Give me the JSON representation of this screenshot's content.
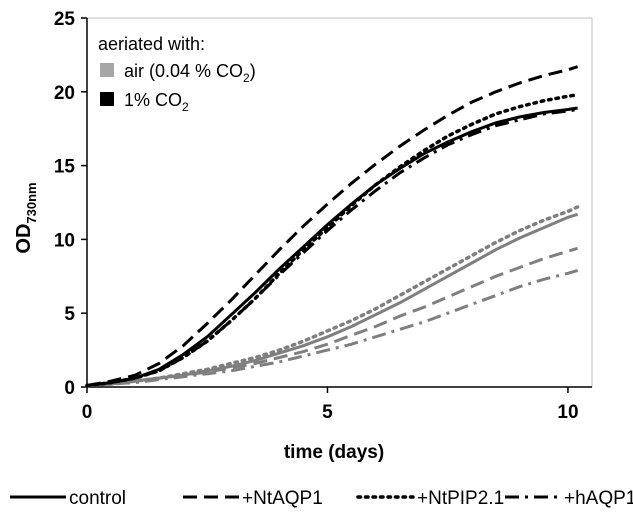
{
  "chart_data": {
    "type": "line",
    "xlabel": "time (days)",
    "ylabel": {
      "main": "OD",
      "sub": "730nm"
    },
    "xlim": [
      0,
      10.5
    ],
    "ylim": [
      0,
      25
    ],
    "xticks": [
      0,
      5,
      10
    ],
    "yticks": [
      0,
      5,
      10,
      15,
      20,
      25
    ],
    "grid": false,
    "box_legend": {
      "title": "aeriated with:",
      "placement": "top-left",
      "entries": [
        {
          "label": "air (0.04 % CO",
          "sub": "2",
          "suffix": ")",
          "color": "#a6a6a6"
        },
        {
          "label": "1% CO",
          "sub": "2",
          "suffix": "",
          "color": "#000000"
        }
      ]
    },
    "line_legend": {
      "placement": "bottom",
      "entries": [
        {
          "label": "control",
          "dash": "solid"
        },
        {
          "label": "+NtAQP1",
          "dash": "dashed"
        },
        {
          "label": "+NtPIP2.1",
          "dash": "dotted"
        },
        {
          "label": "+hAQP1",
          "dash": "dashdot"
        }
      ]
    },
    "colors": {
      "co2": "#000000",
      "air": "#7f7f7f",
      "air_legend": "#a6a6a6"
    },
    "x": [
      0,
      0.5,
      1,
      1.5,
      2,
      2.5,
      3,
      3.5,
      4,
      4.5,
      5,
      5.5,
      6,
      6.5,
      7,
      7.5,
      8,
      8.5,
      9,
      9.5,
      10,
      10.2
    ],
    "series": [
      {
        "name": "control",
        "group": "1% CO2",
        "dash": "solid",
        "values": [
          0.1,
          0.3,
          0.6,
          1.2,
          2.2,
          3.4,
          4.9,
          6.4,
          8.0,
          9.5,
          11.0,
          12.4,
          13.7,
          14.8,
          15.8,
          16.6,
          17.3,
          17.9,
          18.3,
          18.6,
          18.8,
          18.9
        ]
      },
      {
        "name": "+NtAQP1",
        "group": "1% CO2",
        "dash": "dashed",
        "values": [
          0.1,
          0.4,
          0.8,
          1.6,
          2.8,
          4.3,
          5.9,
          7.6,
          9.3,
          10.9,
          12.4,
          13.8,
          15.1,
          16.3,
          17.4,
          18.4,
          19.3,
          20.0,
          20.6,
          21.1,
          21.5,
          21.7
        ]
      },
      {
        "name": "+NtPIP2.1",
        "group": "1% CO2",
        "dash": "dotted",
        "values": [
          0.1,
          0.3,
          0.6,
          1.1,
          2.0,
          3.1,
          4.5,
          6.0,
          7.7,
          9.3,
          10.8,
          12.3,
          13.7,
          14.9,
          16.0,
          17.0,
          17.8,
          18.5,
          19.0,
          19.4,
          19.7,
          19.8
        ]
      },
      {
        "name": "+hAQP1",
        "group": "1% CO2",
        "dash": "dashdot",
        "values": [
          0.1,
          0.3,
          0.6,
          1.1,
          2.0,
          3.1,
          4.5,
          6.0,
          7.6,
          9.1,
          10.6,
          12.0,
          13.3,
          14.5,
          15.5,
          16.4,
          17.1,
          17.7,
          18.1,
          18.5,
          18.7,
          18.8
        ]
      },
      {
        "name": "control",
        "group": "air (0.04 % CO2)",
        "dash": "solid",
        "values": [
          0.1,
          0.2,
          0.4,
          0.6,
          0.8,
          1.1,
          1.4,
          1.8,
          2.3,
          2.8,
          3.4,
          4.1,
          4.9,
          5.7,
          6.6,
          7.5,
          8.4,
          9.3,
          10.1,
          10.8,
          11.5,
          11.7
        ]
      },
      {
        "name": "+NtAQP1",
        "group": "air (0.04 % CO2)",
        "dash": "dashed",
        "values": [
          0.1,
          0.2,
          0.4,
          0.6,
          0.8,
          1.0,
          1.3,
          1.6,
          2.0,
          2.4,
          2.9,
          3.5,
          4.1,
          4.8,
          5.4,
          6.1,
          6.8,
          7.5,
          8.1,
          8.7,
          9.2,
          9.4
        ]
      },
      {
        "name": "+NtPIP2.1",
        "group": "air (0.04 % CO2)",
        "dash": "dotted",
        "values": [
          0.1,
          0.2,
          0.4,
          0.6,
          0.9,
          1.2,
          1.6,
          2.0,
          2.5,
          3.1,
          3.8,
          4.5,
          5.3,
          6.2,
          7.1,
          8.0,
          8.9,
          9.8,
          10.6,
          11.3,
          11.9,
          12.2
        ]
      },
      {
        "name": "+hAQP1",
        "group": "air (0.04 % CO2)",
        "dash": "dashdot",
        "values": [
          0.1,
          0.2,
          0.3,
          0.5,
          0.7,
          0.9,
          1.1,
          1.4,
          1.7,
          2.1,
          2.5,
          2.9,
          3.4,
          3.9,
          4.4,
          5.0,
          5.6,
          6.2,
          6.8,
          7.3,
          7.7,
          7.9
        ]
      }
    ]
  }
}
